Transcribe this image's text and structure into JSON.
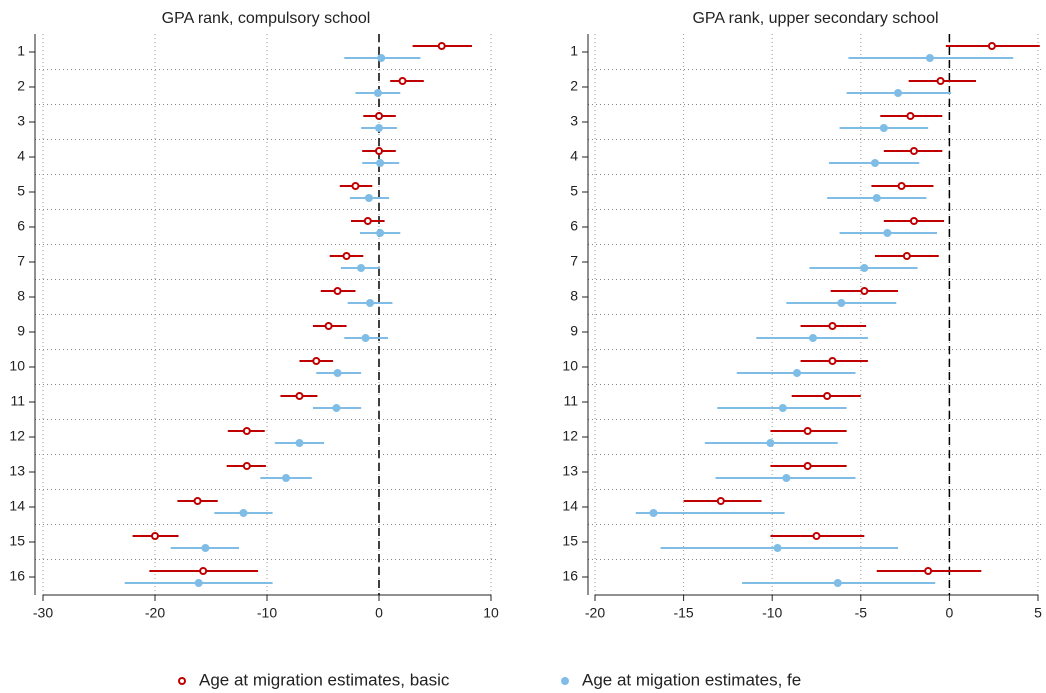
{
  "chart_data": [
    {
      "type": "errorbar",
      "title": "GPA rank, compulsory school",
      "categories": [
        "1",
        "2",
        "3",
        "4",
        "5",
        "6",
        "7",
        "8",
        "9",
        "10",
        "11",
        "12",
        "13",
        "14",
        "15",
        "16"
      ],
      "xlim": [
        -30,
        10
      ],
      "xticks": [
        -30,
        -20,
        -10,
        0,
        10
      ],
      "grid": true,
      "reference_line": 0,
      "series": [
        {
          "name": "Age at migration estimates, basic",
          "color": "#c00000",
          "marker": "hollow",
          "values": [
            5.6,
            2.1,
            0,
            0,
            -2.1,
            -1.0,
            -2.9,
            -3.7,
            -4.5,
            -5.6,
            -7.1,
            -11.8,
            -11.8,
            -16.2,
            -20.0,
            -15.7
          ],
          "lower": [
            3.0,
            1.0,
            -1.4,
            -1.5,
            -3.5,
            -2.5,
            -4.4,
            -5.2,
            -5.9,
            -7.1,
            -8.8,
            -13.5,
            -13.6,
            -18.0,
            -22.0,
            -20.5
          ],
          "upper": [
            8.3,
            4.0,
            1.5,
            1.5,
            -0.6,
            0.5,
            -1.4,
            -2.1,
            -2.9,
            -4.1,
            -5.5,
            -10.2,
            -10.1,
            -14.4,
            -17.9,
            -10.8
          ]
        },
        {
          "name": "Age at migation estimates, fe",
          "color": "#7fbde6",
          "marker": "filled",
          "values": [
            0.2,
            -0.1,
            0,
            0.1,
            -0.9,
            0.1,
            -1.6,
            -0.8,
            -1.2,
            -3.7,
            -3.8,
            -7.1,
            -8.3,
            -12.1,
            -15.5,
            -16.1
          ],
          "lower": [
            -3.1,
            -2.1,
            -1.6,
            -1.5,
            -2.6,
            -1.7,
            -3.4,
            -2.8,
            -3.1,
            -5.6,
            -5.9,
            -9.3,
            -10.6,
            -14.7,
            -18.6,
            -22.7
          ],
          "upper": [
            3.7,
            1.9,
            1.6,
            1.8,
            0.9,
            1.9,
            0.1,
            1.2,
            0.8,
            -1.6,
            -1.6,
            -4.9,
            -6.0,
            -9.5,
            -12.5,
            -9.5
          ]
        }
      ]
    },
    {
      "type": "errorbar",
      "title": "GPA rank, upper secondary school",
      "categories": [
        "1",
        "2",
        "3",
        "4",
        "5",
        "6",
        "7",
        "8",
        "9",
        "10",
        "11",
        "12",
        "13",
        "14",
        "15",
        "16"
      ],
      "xlim": [
        -20,
        5
      ],
      "xticks": [
        -20,
        -15,
        -10,
        -5,
        0,
        5
      ],
      "grid": true,
      "reference_line": 0,
      "series": [
        {
          "color": "#c00000",
          "marker": "hollow",
          "values": [
            2.4,
            -0.5,
            -2.2,
            -2.0,
            -2.7,
            -2.0,
            -2.4,
            -4.8,
            -6.6,
            -6.6,
            -6.9,
            -8.0,
            -8.0,
            -12.9,
            -7.5,
            -1.2
          ],
          "lower": [
            -0.2,
            -2.3,
            -3.9,
            -3.7,
            -4.4,
            -3.7,
            -4.2,
            -6.7,
            -8.4,
            -8.4,
            -8.9,
            -10.1,
            -10.1,
            -15.0,
            -10.1,
            -4.1
          ],
          "upper": [
            5.1,
            1.5,
            -0.4,
            -0.4,
            -0.9,
            -0.3,
            -0.6,
            -2.9,
            -4.7,
            -4.6,
            -5.0,
            -5.8,
            -5.8,
            -10.6,
            -4.8,
            1.8
          ]
        },
        {
          "color": "#7fbde6",
          "marker": "filled",
          "values": [
            -1.1,
            -2.9,
            -3.7,
            -4.2,
            -4.1,
            -3.5,
            -4.8,
            -6.1,
            -7.7,
            -8.6,
            -9.4,
            -10.1,
            -9.2,
            -16.7,
            -9.7,
            -6.3
          ],
          "lower": [
            -5.7,
            -5.8,
            -6.2,
            -6.8,
            -6.9,
            -6.2,
            -7.9,
            -9.2,
            -10.9,
            -12.0,
            -13.1,
            -13.8,
            -13.2,
            -17.7,
            -16.3,
            -11.7
          ],
          "upper": [
            3.6,
            0.1,
            -1.2,
            -1.7,
            -1.3,
            -0.7,
            -1.8,
            -3.0,
            -4.6,
            -5.3,
            -5.8,
            -6.3,
            -5.3,
            -9.3,
            -2.9,
            -0.8
          ]
        }
      ]
    }
  ]
}
